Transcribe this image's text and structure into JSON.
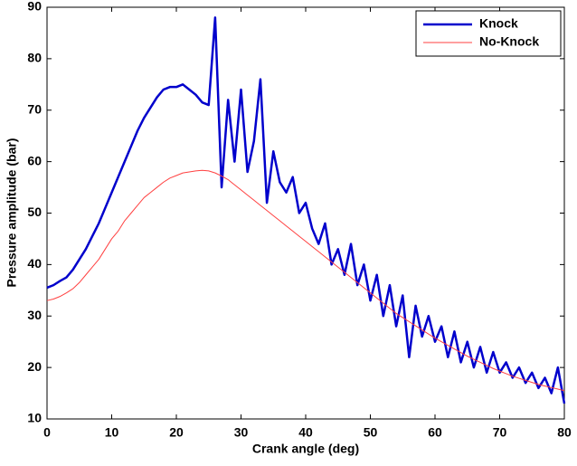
{
  "chart_data": {
    "type": "line",
    "xlabel": "Crank angle (deg)",
    "ylabel": "Pressure amplitude (bar)",
    "x": [
      0,
      1,
      2,
      3,
      4,
      5,
      6,
      7,
      8,
      9,
      10,
      11,
      12,
      13,
      14,
      15,
      16,
      17,
      18,
      19,
      20,
      21,
      22,
      23,
      24,
      25,
      26,
      27,
      28,
      29,
      30,
      31,
      32,
      33,
      34,
      35,
      36,
      37,
      38,
      39,
      40,
      41,
      42,
      43,
      44,
      45,
      46,
      47,
      48,
      49,
      50,
      51,
      52,
      53,
      54,
      55,
      56,
      57,
      58,
      59,
      60,
      61,
      62,
      63,
      64,
      65,
      66,
      67,
      68,
      69,
      70,
      71,
      72,
      73,
      74,
      75,
      76,
      77,
      78,
      79,
      80
    ],
    "series": [
      {
        "name": "Knock",
        "color": "#0000cc",
        "width": 2.5,
        "values": [
          35.5,
          36,
          36.8,
          37.5,
          39,
          41,
          43,
          45.5,
          48,
          51,
          54,
          57,
          60,
          63,
          66,
          68.5,
          70.5,
          72.5,
          74,
          74.5,
          74.5,
          75,
          74,
          73,
          71.5,
          71,
          88,
          55,
          72,
          60,
          74,
          58,
          64,
          76,
          52,
          62,
          56,
          54,
          57,
          50,
          52,
          47,
          44,
          48,
          40,
          43,
          38,
          44,
          36,
          40,
          33,
          38,
          30,
          36,
          28,
          34,
          22,
          32,
          26,
          30,
          25,
          28,
          22,
          27,
          21,
          25,
          20,
          24,
          19,
          23,
          19,
          21,
          18,
          20,
          17,
          19,
          16,
          18,
          15,
          20,
          13
        ]
      },
      {
        "name": "No-Knock",
        "color": "#ff4040",
        "width": 1,
        "values": [
          33,
          33.3,
          33.8,
          34.5,
          35.3,
          36.5,
          38,
          39.5,
          41,
          43,
          45,
          46.5,
          48.5,
          50,
          51.5,
          53,
          54,
          55,
          56,
          56.8,
          57.3,
          57.8,
          58,
          58.2,
          58.3,
          58.2,
          57.8,
          57.2,
          56.5,
          55.5,
          54.5,
          53.5,
          52.5,
          51.5,
          50.5,
          49.5,
          48.5,
          47.5,
          46.5,
          45.5,
          44.5,
          43.5,
          42.5,
          41.5,
          40.5,
          39.5,
          38.5,
          37.5,
          36.5,
          35.5,
          34.5,
          33.5,
          32.5,
          31.5,
          30.5,
          29.7,
          28.9,
          28.1,
          27.3,
          26.5,
          25.7,
          25,
          24.3,
          23.6,
          22.9,
          22.2,
          21.6,
          21,
          20.4,
          19.8,
          19.3,
          18.8,
          18.3,
          17.9,
          17.5,
          17.1,
          16.7,
          16.4,
          16.1,
          15.8,
          15.5
        ]
      }
    ],
    "xlim": [
      0,
      80
    ],
    "xticks": [
      0,
      10,
      20,
      30,
      40,
      50,
      60,
      70,
      80
    ],
    "ylim": [
      10,
      90
    ],
    "yticks": [
      10,
      20,
      30,
      40,
      50,
      60,
      70,
      80,
      90
    ],
    "legend": "upper right"
  }
}
